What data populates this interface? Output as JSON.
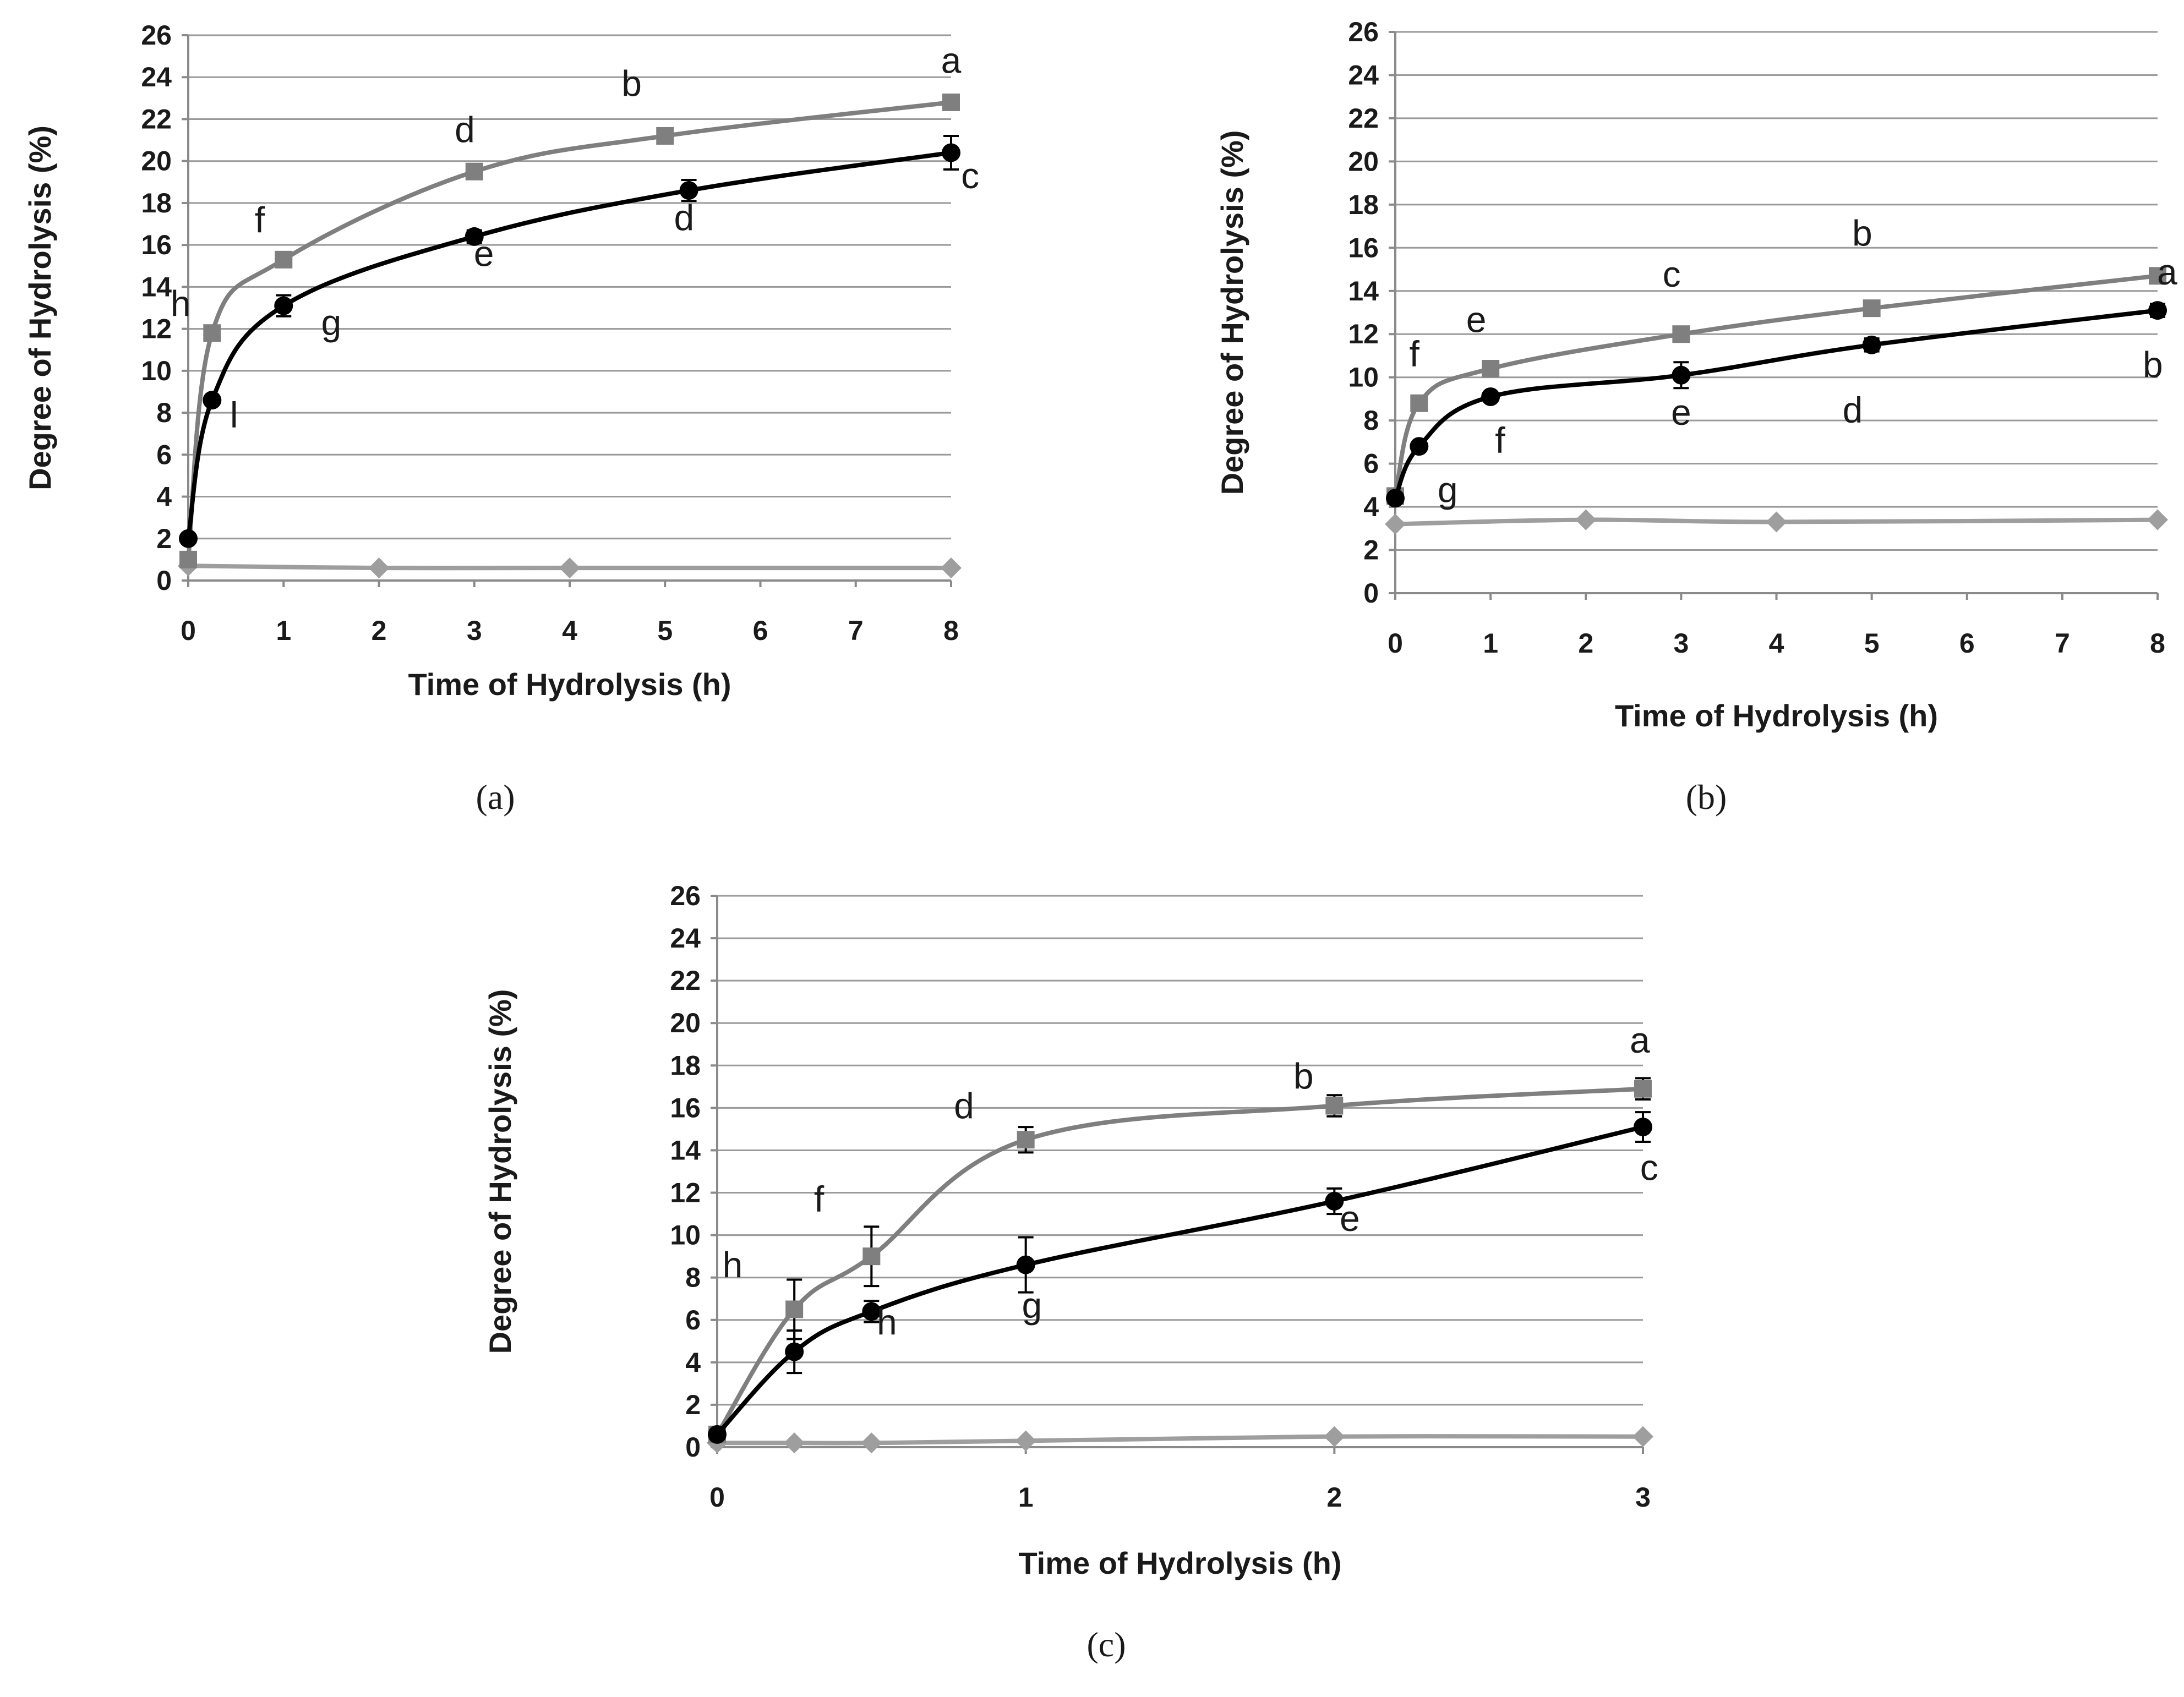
{
  "chart_data": [
    {
      "panel": "a",
      "type": "line",
      "caption": "(a)",
      "xlabel": "Time of Hydrolysis (h)",
      "ylabel": "Degree of Hydrolysis (%)",
      "xlim": [
        0,
        8
      ],
      "ylim": [
        0,
        26
      ],
      "x_ticks": [
        0,
        1,
        2,
        3,
        4,
        5,
        6,
        7,
        8
      ],
      "y_ticks": [
        0,
        2,
        4,
        6,
        8,
        10,
        12,
        14,
        16,
        18,
        20,
        22,
        24,
        26
      ],
      "grid": true,
      "series": [
        {
          "name": "control",
          "color": "#9e9e9e",
          "marker": "diamond",
          "x": [
            0,
            2,
            4,
            8
          ],
          "y": [
            0.7,
            0.6,
            0.6,
            0.6
          ]
        },
        {
          "name": "grey-square",
          "color": "#7f7f7f",
          "marker": "square",
          "x": [
            0,
            0.25,
            1,
            3,
            5,
            8
          ],
          "y": [
            1.0,
            11.8,
            15.3,
            19.5,
            21.2,
            22.8
          ],
          "err": [
            0,
            0,
            0,
            0,
            0,
            0.3
          ]
        },
        {
          "name": "black-circle",
          "color": "#000000",
          "marker": "circle",
          "x": [
            0,
            0.25,
            1,
            3,
            5.25,
            8
          ],
          "y": [
            2.0,
            8.6,
            13.1,
            16.4,
            18.6,
            20.4
          ],
          "err": [
            0,
            0,
            0.5,
            0.3,
            0.5,
            0.8
          ]
        }
      ],
      "annotations": [
        {
          "text": "a",
          "x": 8.0,
          "y": 24.2
        },
        {
          "text": "b",
          "x": 4.65,
          "y": 23.1
        },
        {
          "text": "d",
          "x": 2.9,
          "y": 20.9
        },
        {
          "text": "f",
          "x": 0.75,
          "y": 16.6
        },
        {
          "text": "h",
          "x": -0.08,
          "y": 12.6
        },
        {
          "text": "c",
          "x": 8.2,
          "y": 18.7
        },
        {
          "text": "d",
          "x": 5.2,
          "y": 16.7
        },
        {
          "text": "e",
          "x": 3.1,
          "y": 15.0
        },
        {
          "text": "g",
          "x": 1.5,
          "y": 11.7
        },
        {
          "text": "l",
          "x": 0.48,
          "y": 7.3
        }
      ]
    },
    {
      "panel": "b",
      "type": "line",
      "caption": "(b)",
      "xlabel": "Time of Hydrolysis (h)",
      "ylabel": "Degree of Hydrolysis  (%)",
      "xlim": [
        0,
        8
      ],
      "ylim": [
        0,
        26
      ],
      "x_ticks": [
        0,
        1,
        2,
        3,
        4,
        5,
        6,
        7,
        8
      ],
      "y_ticks": [
        0,
        2,
        4,
        6,
        8,
        10,
        12,
        14,
        16,
        18,
        20,
        22,
        24,
        26
      ],
      "grid": true,
      "series": [
        {
          "name": "control",
          "color": "#9e9e9e",
          "marker": "diamond",
          "x": [
            0,
            2,
            4,
            8
          ],
          "y": [
            3.2,
            3.4,
            3.3,
            3.4
          ]
        },
        {
          "name": "grey-square",
          "color": "#7f7f7f",
          "marker": "square",
          "x": [
            0,
            0.25,
            1,
            3,
            5,
            8
          ],
          "y": [
            4.5,
            8.8,
            10.4,
            12.0,
            13.2,
            14.7
          ]
        },
        {
          "name": "black-circle",
          "color": "#000000",
          "marker": "circle",
          "x": [
            0,
            0.25,
            1,
            3,
            5,
            8
          ],
          "y": [
            4.4,
            6.8,
            9.1,
            10.1,
            11.5,
            13.1
          ],
          "err": [
            0,
            0,
            0.2,
            0.6,
            0.3,
            0.3
          ]
        }
      ],
      "annotations": [
        {
          "text": "a",
          "x": 8.1,
          "y": 14.3
        },
        {
          "text": "b",
          "x": 4.9,
          "y": 16.1
        },
        {
          "text": "c",
          "x": 2.9,
          "y": 14.2
        },
        {
          "text": "e",
          "x": 0.85,
          "y": 12.1
        },
        {
          "text": "f",
          "x": 0.2,
          "y": 10.5
        },
        {
          "text": "b",
          "x": 7.95,
          "y": 10.0
        },
        {
          "text": "d",
          "x": 4.8,
          "y": 7.9
        },
        {
          "text": "e",
          "x": 3.0,
          "y": 7.8
        },
        {
          "text": "f",
          "x": 1.1,
          "y": 6.5
        },
        {
          "text": "g",
          "x": 0.55,
          "y": 4.2
        }
      ]
    },
    {
      "panel": "c",
      "type": "line",
      "caption": "(c)",
      "xlabel": "Time of Hydrolysis (h)",
      "ylabel": "Degree of Hydrolysis (%)",
      "xlim": [
        0,
        3
      ],
      "ylim": [
        0,
        26
      ],
      "x_ticks": [
        0,
        1,
        2,
        3
      ],
      "y_ticks": [
        0,
        2,
        4,
        6,
        8,
        10,
        12,
        14,
        16,
        18,
        20,
        22,
        24,
        26
      ],
      "grid": true,
      "series": [
        {
          "name": "control",
          "color": "#9e9e9e",
          "marker": "diamond",
          "x": [
            0,
            0.25,
            0.5,
            1,
            2,
            3
          ],
          "y": [
            0.2,
            0.2,
            0.2,
            0.3,
            0.5,
            0.5
          ]
        },
        {
          "name": "grey-square",
          "color": "#7f7f7f",
          "marker": "square",
          "x": [
            0,
            0.25,
            0.5,
            1,
            2,
            3
          ],
          "y": [
            0.6,
            6.5,
            9.0,
            14.5,
            16.1,
            16.9
          ],
          "err": [
            0,
            1.4,
            1.4,
            0.6,
            0.5,
            0.5
          ]
        },
        {
          "name": "black-circle",
          "color": "#000000",
          "marker": "circle",
          "x": [
            0,
            0.25,
            0.5,
            1,
            2,
            3
          ],
          "y": [
            0.6,
            4.5,
            6.4,
            8.6,
            11.6,
            15.1
          ],
          "err": [
            0,
            1.0,
            0.5,
            1.3,
            0.6,
            0.7
          ]
        }
      ],
      "annotations": [
        {
          "text": "a",
          "x": 2.99,
          "y": 18.6
        },
        {
          "text": "b",
          "x": 1.9,
          "y": 16.9
        },
        {
          "text": "d",
          "x": 0.8,
          "y": 15.5
        },
        {
          "text": "f",
          "x": 0.33,
          "y": 11.1
        },
        {
          "text": "h",
          "x": 0.05,
          "y": 8.0
        },
        {
          "text": "c",
          "x": 3.02,
          "y": 12.6
        },
        {
          "text": "e",
          "x": 2.05,
          "y": 10.2
        },
        {
          "text": "h",
          "x": 0.55,
          "y": 5.3
        },
        {
          "text": "g",
          "x": 1.02,
          "y": 6.1
        }
      ]
    }
  ]
}
